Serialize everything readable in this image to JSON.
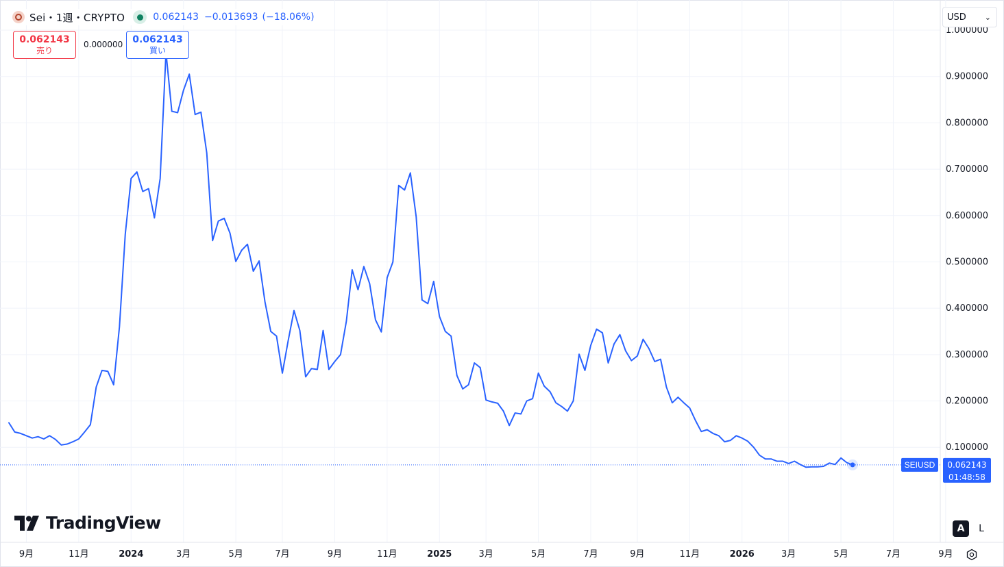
{
  "header": {
    "symbol_title": "Sei・1週・CRYPTO",
    "last_price": "0.062143",
    "change": "−0.013693",
    "change_pct": "(−18.06%)"
  },
  "trade": {
    "sell_price": "0.062143",
    "sell_label": "売り",
    "spread": "0.000000",
    "buy_price": "0.062143",
    "buy_label": "買い"
  },
  "currency": "USD",
  "branding": "TradingView",
  "scale_buttons": {
    "auto": "A",
    "log": "L"
  },
  "price_tags": {
    "symbol": "SEIUSD",
    "price": "0.062143",
    "countdown": "01:48:58"
  },
  "colors": {
    "line": "#2962ff",
    "grid": "#f0f3fa",
    "sell": "#f23645",
    "buy": "#2962ff",
    "tag_bg": "#2962ff"
  },
  "chart_data": {
    "type": "line",
    "y_tick_labels": [
      "1.000000",
      "0.900000",
      "0.800000",
      "0.700000",
      "0.600000",
      "0.500000",
      "0.400000",
      "0.300000",
      "0.200000",
      "0.100000"
    ],
    "y_ticks": [
      1.0,
      0.9,
      0.8,
      0.7,
      0.6,
      0.5,
      0.4,
      0.3,
      0.2,
      0.1
    ],
    "ylim": [
      -0.105,
      1.065
    ],
    "x_ticks": [
      {
        "label": "9月",
        "week": 3,
        "bold": false
      },
      {
        "label": "11月",
        "week": 12,
        "bold": false
      },
      {
        "label": "2024",
        "week": 21,
        "bold": true
      },
      {
        "label": "3月",
        "week": 30,
        "bold": false
      },
      {
        "label": "5月",
        "week": 39,
        "bold": false
      },
      {
        "label": "7月",
        "week": 47,
        "bold": false
      },
      {
        "label": "9月",
        "week": 56,
        "bold": false
      },
      {
        "label": "11月",
        "week": 65,
        "bold": false
      },
      {
        "label": "2025",
        "week": 74,
        "bold": true
      },
      {
        "label": "3月",
        "week": 82,
        "bold": false
      },
      {
        "label": "5月",
        "week": 91,
        "bold": false
      },
      {
        "label": "7月",
        "week": 100,
        "bold": false
      },
      {
        "label": "9月",
        "week": 108,
        "bold": false
      },
      {
        "label": "11月",
        "week": 117,
        "bold": false
      },
      {
        "label": "2026",
        "week": 126,
        "bold": true
      },
      {
        "label": "3月",
        "week": 134,
        "bold": false
      },
      {
        "label": "5月",
        "week": 143,
        "bold": false
      },
      {
        "label": "7月",
        "week": 152,
        "bold": false
      },
      {
        "label": "9月",
        "week": 161,
        "bold": false
      }
    ],
    "series": [
      {
        "values": [
          0.153,
          0.133,
          0.13,
          0.125,
          0.12,
          0.123,
          0.118,
          0.125,
          0.117,
          0.105,
          0.107,
          0.112,
          0.118,
          0.133,
          0.149,
          0.23,
          0.266,
          0.264,
          0.235,
          0.36,
          0.56,
          0.68,
          0.694,
          0.652,
          0.658,
          0.595,
          0.68,
          0.952,
          0.825,
          0.822,
          0.87,
          0.905,
          0.818,
          0.823,
          0.735,
          0.546,
          0.588,
          0.594,
          0.562,
          0.501,
          0.525,
          0.538,
          0.48,
          0.502,
          0.414,
          0.35,
          0.34,
          0.26,
          0.33,
          0.395,
          0.352,
          0.252,
          0.27,
          0.268,
          0.352,
          0.268,
          0.285,
          0.3,
          0.372,
          0.483,
          0.44,
          0.49,
          0.453,
          0.375,
          0.349,
          0.466,
          0.5,
          0.665,
          0.655,
          0.692,
          0.597,
          0.418,
          0.41,
          0.458,
          0.382,
          0.35,
          0.34,
          0.255,
          0.226,
          0.235,
          0.282,
          0.272,
          0.202,
          0.198,
          0.195,
          0.178,
          0.147,
          0.174,
          0.172,
          0.2,
          0.205,
          0.26,
          0.232,
          0.22,
          0.196,
          0.188,
          0.178,
          0.2,
          0.301,
          0.266,
          0.32,
          0.355,
          0.347,
          0.282,
          0.323,
          0.343,
          0.308,
          0.287,
          0.297,
          0.333,
          0.313,
          0.285,
          0.29,
          0.23,
          0.196,
          0.208,
          0.196,
          0.185,
          0.158,
          0.134,
          0.138,
          0.13,
          0.125,
          0.112,
          0.115,
          0.125,
          0.12,
          0.113,
          0.1,
          0.083,
          0.075,
          0.075,
          0.07,
          0.07,
          0.065,
          0.07,
          0.063,
          0.057,
          0.058,
          0.058,
          0.059,
          0.066,
          0.063,
          0.077,
          0.067,
          0.062
        ]
      }
    ],
    "last_value": 0.062143,
    "weeks_total": 166
  }
}
